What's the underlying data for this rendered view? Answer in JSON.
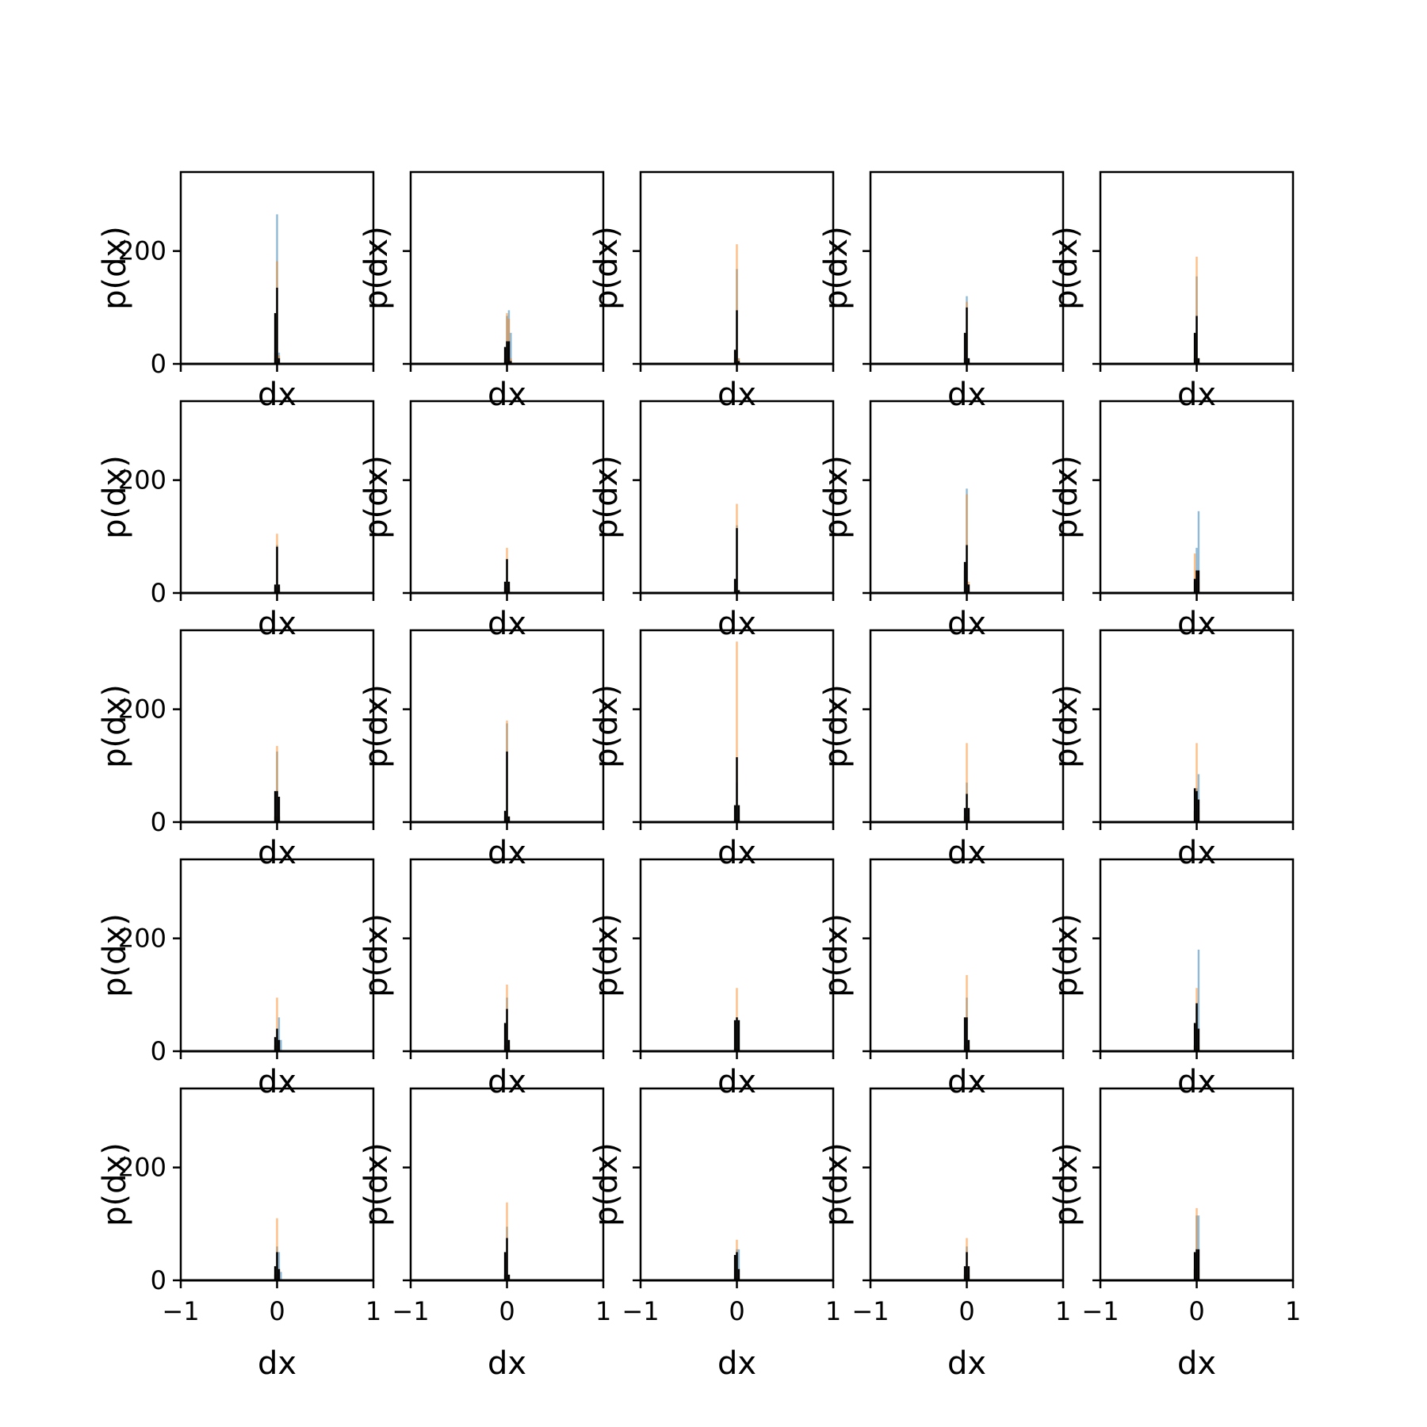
{
  "figure": {
    "rows": 5,
    "cols": 5,
    "sharex": true,
    "sharey": true
  },
  "legend": [],
  "colors": {
    "blue": "#1f77b4",
    "orange": "#ff7f0e",
    "black": "#000000",
    "bar_alpha": 0.5
  },
  "chart_data": {
    "type": "histogram-grid",
    "xlabel": "dx",
    "ylabel": "p(dx)",
    "xlim": [
      -1,
      1
    ],
    "ylim": [
      0,
      340
    ],
    "xticks": [
      -1,
      0,
      1
    ],
    "xtick_labels": [
      "−1",
      "0",
      "1"
    ],
    "yticks": [
      0,
      200
    ],
    "ytick_labels": [
      "0",
      "200"
    ],
    "grid": false,
    "bin_width": 0.02,
    "panels": [
      {
        "blue": [
          [
            -0.02,
            10
          ],
          [
            0,
            265
          ],
          [
            0.02,
            20
          ]
        ],
        "orange": [
          [
            -0.02,
            20
          ],
          [
            0,
            182
          ],
          [
            0.02,
            15
          ]
        ],
        "black": [
          [
            -0.02,
            90
          ],
          [
            0,
            135
          ],
          [
            0.02,
            10
          ]
        ]
      },
      {
        "blue": [
          [
            -0.02,
            5
          ],
          [
            0,
            85
          ],
          [
            0.02,
            95
          ],
          [
            0.04,
            55
          ]
        ],
        "orange": [
          [
            -0.02,
            10
          ],
          [
            0,
            90
          ],
          [
            0.02,
            80
          ],
          [
            0.04,
            10
          ]
        ],
        "black": [
          [
            -0.02,
            30
          ],
          [
            0,
            40
          ],
          [
            0.02,
            40
          ],
          [
            0.04,
            5
          ]
        ]
      },
      {
        "blue": [
          [
            -0.02,
            5
          ],
          [
            0,
            168
          ],
          [
            0.02,
            10
          ]
        ],
        "orange": [
          [
            -0.02,
            10
          ],
          [
            0,
            212
          ],
          [
            0.02,
            10
          ]
        ],
        "black": [
          [
            -0.02,
            25
          ],
          [
            0,
            95
          ],
          [
            0.02,
            5
          ]
        ]
      },
      {
        "blue": [
          [
            -0.02,
            10
          ],
          [
            0,
            120
          ],
          [
            0.02,
            10
          ]
        ],
        "orange": [
          [
            -0.02,
            10
          ],
          [
            0,
            110
          ],
          [
            0.02,
            5
          ]
        ],
        "black": [
          [
            -0.02,
            55
          ],
          [
            0,
            100
          ],
          [
            0.02,
            10
          ]
        ]
      },
      {
        "blue": [
          [
            -0.02,
            10
          ],
          [
            0,
            155
          ],
          [
            0.02,
            10
          ]
        ],
        "orange": [
          [
            -0.02,
            10
          ],
          [
            0,
            190
          ],
          [
            0.02,
            10
          ]
        ],
        "black": [
          [
            -0.02,
            55
          ],
          [
            0,
            85
          ],
          [
            0.02,
            10
          ]
        ]
      },
      {
        "blue": [
          [
            -0.02,
            10
          ],
          [
            0,
            85
          ],
          [
            0.02,
            10
          ]
        ],
        "orange": [
          [
            -0.02,
            10
          ],
          [
            0,
            105
          ],
          [
            0.02,
            10
          ]
        ],
        "black": [
          [
            -0.02,
            15
          ],
          [
            0,
            82
          ],
          [
            0.02,
            15
          ]
        ]
      },
      {
        "blue": [
          [
            -0.02,
            10
          ],
          [
            0,
            60
          ],
          [
            0.02,
            10
          ]
        ],
        "orange": [
          [
            -0.02,
            10
          ],
          [
            0,
            80
          ],
          [
            0.02,
            10
          ]
        ],
        "black": [
          [
            -0.02,
            20
          ],
          [
            0,
            60
          ],
          [
            0.02,
            20
          ]
        ]
      },
      {
        "blue": [
          [
            -0.02,
            5
          ],
          [
            0,
            120
          ],
          [
            0.02,
            5
          ]
        ],
        "orange": [
          [
            -0.02,
            5
          ],
          [
            0,
            158
          ],
          [
            0.02,
            5
          ]
        ],
        "black": [
          [
            -0.02,
            25
          ],
          [
            0,
            115
          ],
          [
            0.02,
            5
          ]
        ]
      },
      {
        "blue": [
          [
            -0.02,
            40
          ],
          [
            0,
            185
          ],
          [
            0.02,
            15
          ]
        ],
        "orange": [
          [
            -0.02,
            40
          ],
          [
            0,
            175
          ],
          [
            0.02,
            20
          ]
        ],
        "black": [
          [
            -0.02,
            55
          ],
          [
            0,
            85
          ],
          [
            0.02,
            15
          ]
        ]
      },
      {
        "blue": [
          [
            -0.02,
            20
          ],
          [
            0,
            80
          ],
          [
            0.02,
            145
          ]
        ],
        "orange": [
          [
            -0.02,
            70
          ],
          [
            0,
            40
          ],
          [
            0.02,
            20
          ]
        ],
        "black": [
          [
            -0.02,
            25
          ],
          [
            0,
            40
          ],
          [
            0.02,
            40
          ]
        ]
      },
      {
        "blue": [
          [
            -0.02,
            10
          ],
          [
            0,
            125
          ],
          [
            0.02,
            10
          ]
        ],
        "orange": [
          [
            -0.02,
            10
          ],
          [
            0,
            135
          ],
          [
            0.02,
            10
          ]
        ],
        "black": [
          [
            -0.02,
            55
          ],
          [
            0,
            55
          ],
          [
            0.02,
            45
          ]
        ]
      },
      {
        "blue": [
          [
            -0.02,
            10
          ],
          [
            0,
            175
          ],
          [
            0.02,
            10
          ]
        ],
        "orange": [
          [
            -0.02,
            10
          ],
          [
            0,
            180
          ],
          [
            0.02,
            10
          ]
        ],
        "black": [
          [
            -0.02,
            20
          ],
          [
            0,
            125
          ],
          [
            0.02,
            10
          ]
        ]
      },
      {
        "blue": [
          [
            -0.02,
            5
          ],
          [
            0,
            70
          ],
          [
            0.02,
            5
          ]
        ],
        "orange": [
          [
            -0.02,
            5
          ],
          [
            0,
            320
          ],
          [
            0.02,
            5
          ]
        ],
        "black": [
          [
            -0.02,
            30
          ],
          [
            0,
            115
          ],
          [
            0.02,
            30
          ]
        ]
      },
      {
        "blue": [
          [
            -0.02,
            10
          ],
          [
            0,
            70
          ],
          [
            0.02,
            10
          ]
        ],
        "orange": [
          [
            -0.02,
            10
          ],
          [
            0,
            140
          ],
          [
            0.02,
            10
          ]
        ],
        "black": [
          [
            -0.02,
            25
          ],
          [
            0,
            50
          ],
          [
            0.02,
            25
          ]
        ]
      },
      {
        "blue": [
          [
            -0.02,
            20
          ],
          [
            0,
            60
          ],
          [
            0.02,
            85
          ]
        ],
        "orange": [
          [
            -0.02,
            20
          ],
          [
            0,
            140
          ],
          [
            0.02,
            20
          ]
        ],
        "black": [
          [
            -0.02,
            60
          ],
          [
            0,
            55
          ],
          [
            0.02,
            40
          ]
        ]
      },
      {
        "blue": [
          [
            -0.02,
            10
          ],
          [
            0,
            20
          ],
          [
            0.02,
            60
          ],
          [
            0.04,
            20
          ]
        ],
        "orange": [
          [
            -0.02,
            10
          ],
          [
            0,
            95
          ],
          [
            0.02,
            10
          ]
        ],
        "black": [
          [
            -0.02,
            25
          ],
          [
            0,
            40
          ],
          [
            0.02,
            20
          ]
        ]
      },
      {
        "blue": [
          [
            -0.02,
            10
          ],
          [
            0,
            95
          ],
          [
            0.02,
            10
          ]
        ],
        "orange": [
          [
            -0.02,
            10
          ],
          [
            0,
            118
          ],
          [
            0.02,
            10
          ]
        ],
        "black": [
          [
            -0.02,
            50
          ],
          [
            0,
            75
          ],
          [
            0.02,
            20
          ]
        ]
      },
      {
        "blue": [
          [
            -0.02,
            5
          ],
          [
            0,
            55
          ],
          [
            0.02,
            55
          ]
        ],
        "orange": [
          [
            -0.02,
            5
          ],
          [
            0,
            112
          ],
          [
            0.02,
            5
          ]
        ],
        "black": [
          [
            -0.02,
            55
          ],
          [
            0,
            60
          ],
          [
            0.02,
            55
          ]
        ]
      },
      {
        "blue": [
          [
            -0.02,
            10
          ],
          [
            0,
            95
          ],
          [
            0.02,
            10
          ]
        ],
        "orange": [
          [
            -0.02,
            10
          ],
          [
            0,
            135
          ],
          [
            0.02,
            10
          ]
        ],
        "black": [
          [
            -0.02,
            60
          ],
          [
            0,
            60
          ],
          [
            0.02,
            20
          ]
        ]
      },
      {
        "blue": [
          [
            -0.02,
            10
          ],
          [
            0,
            80
          ],
          [
            0.02,
            180
          ]
        ],
        "orange": [
          [
            -0.02,
            10
          ],
          [
            0,
            112
          ],
          [
            0.02,
            10
          ]
        ],
        "black": [
          [
            -0.02,
            50
          ],
          [
            0,
            85
          ],
          [
            0.02,
            40
          ]
        ]
      },
      {
        "blue": [
          [
            -0.02,
            10
          ],
          [
            0,
            60
          ],
          [
            0.02,
            50
          ],
          [
            0.04,
            15
          ]
        ],
        "orange": [
          [
            -0.02,
            10
          ],
          [
            0,
            110
          ],
          [
            0.02,
            10
          ]
        ],
        "black": [
          [
            -0.02,
            25
          ],
          [
            0,
            50
          ],
          [
            0.02,
            20
          ]
        ]
      },
      {
        "blue": [
          [
            -0.02,
            10
          ],
          [
            0,
            95
          ],
          [
            0.02,
            10
          ]
        ],
        "orange": [
          [
            -0.02,
            10
          ],
          [
            0,
            138
          ],
          [
            0.02,
            10
          ]
        ],
        "black": [
          [
            -0.02,
            50
          ],
          [
            0,
            75
          ],
          [
            0.02,
            10
          ]
        ]
      },
      {
        "blue": [
          [
            -0.02,
            5
          ],
          [
            0,
            55
          ],
          [
            0.02,
            55
          ]
        ],
        "orange": [
          [
            -0.02,
            5
          ],
          [
            0,
            72
          ],
          [
            0.02,
            5
          ]
        ],
        "black": [
          [
            -0.02,
            45
          ],
          [
            0,
            50
          ],
          [
            0.02,
            20
          ]
        ]
      },
      {
        "blue": [
          [
            -0.02,
            10
          ],
          [
            0,
            60
          ],
          [
            0.02,
            10
          ]
        ],
        "orange": [
          [
            -0.02,
            10
          ],
          [
            0,
            75
          ],
          [
            0.02,
            10
          ]
        ],
        "black": [
          [
            -0.02,
            25
          ],
          [
            0,
            50
          ],
          [
            0.02,
            25
          ]
        ]
      },
      {
        "blue": [
          [
            -0.02,
            20
          ],
          [
            0,
            115
          ],
          [
            0.02,
            115
          ]
        ],
        "orange": [
          [
            -0.02,
            20
          ],
          [
            0,
            128
          ],
          [
            0.02,
            20
          ]
        ],
        "black": [
          [
            -0.02,
            50
          ],
          [
            0,
            55
          ],
          [
            0.02,
            55
          ]
        ]
      }
    ]
  }
}
